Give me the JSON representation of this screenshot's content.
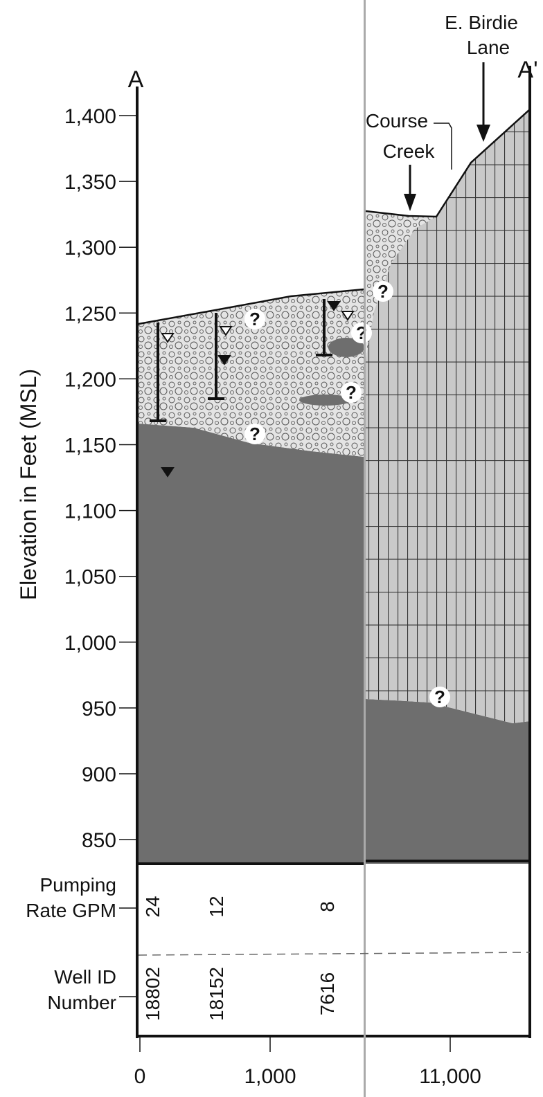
{
  "section_labels": {
    "start": "A",
    "end": "A'"
  },
  "annotations": {
    "road": [
      "E. Birdie",
      "Lane"
    ],
    "creek": [
      "Course",
      "Creek"
    ],
    "uncertain": "?"
  },
  "y_axis": {
    "title": "Elevation in Feet (MSL)",
    "ticks": [
      "1,400",
      "1,350",
      "1,300",
      "1,250",
      "1,200",
      "1,150",
      "1,100",
      "1,050",
      "1,000",
      "950",
      "900",
      "850"
    ]
  },
  "table": {
    "row_labels": [
      [
        "Pumping",
        "Rate GPM"
      ],
      [
        "Well ID",
        "Number"
      ]
    ],
    "wells": [
      {
        "pumping_rate": "24",
        "well_id": "18802"
      },
      {
        "pumping_rate": "12",
        "well_id": "18152"
      },
      {
        "pumping_rate": "8",
        "well_id": "7616"
      }
    ]
  },
  "x_axis": {
    "ticks": [
      "0",
      "1,000",
      "11,000"
    ]
  }
}
